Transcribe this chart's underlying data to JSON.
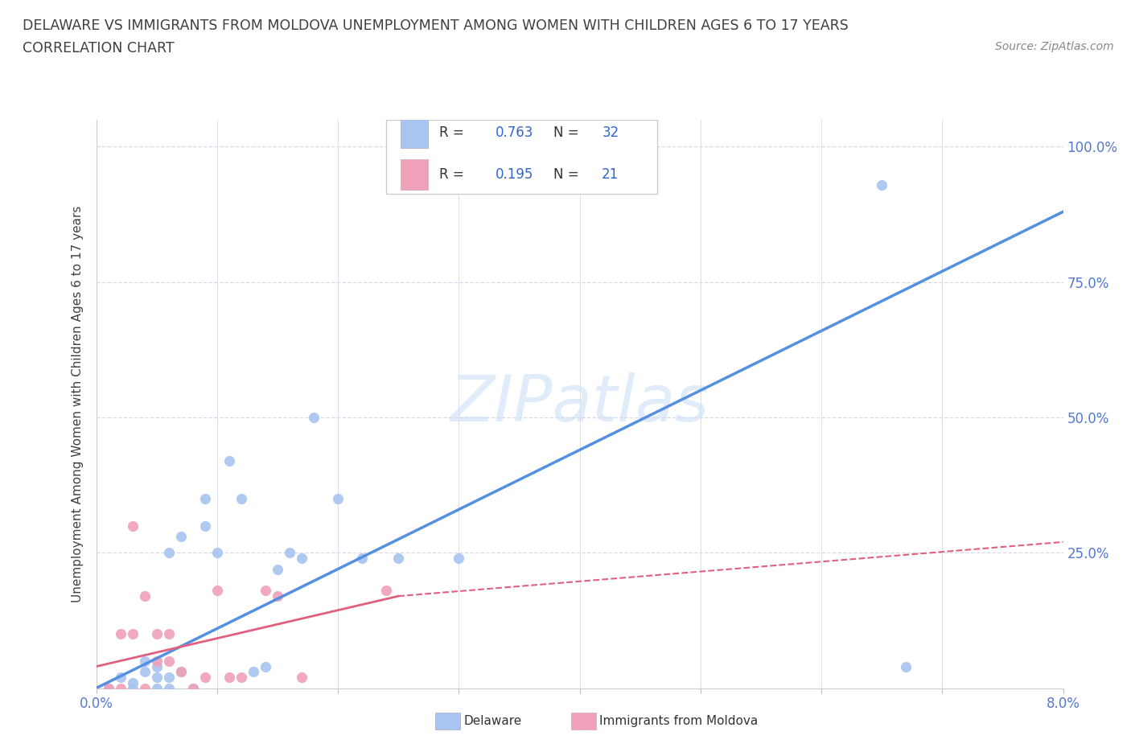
{
  "title_line1": "DELAWARE VS IMMIGRANTS FROM MOLDOVA UNEMPLOYMENT AMONG WOMEN WITH CHILDREN AGES 6 TO 17 YEARS",
  "title_line2": "CORRELATION CHART",
  "source_text": "Source: ZipAtlas.com",
  "ylabel": "Unemployment Among Women with Children Ages 6 to 17 years",
  "xlim": [
    0.0,
    0.08
  ],
  "ylim": [
    0.0,
    1.05
  ],
  "ytick_positions": [
    0.0,
    0.25,
    0.5,
    0.75,
    1.0
  ],
  "ytick_labels": [
    "",
    "25.0%",
    "50.0%",
    "75.0%",
    "100.0%"
  ],
  "delaware_color": "#a8c4f0",
  "moldova_color": "#f0a0b8",
  "delaware_line_color": "#5590e0",
  "moldova_line_color": "#e06080",
  "delaware_R": 0.763,
  "delaware_N": 32,
  "moldova_R": 0.195,
  "moldova_N": 21,
  "delaware_scatter": [
    [
      0.001,
      0.0
    ],
    [
      0.002,
      0.02
    ],
    [
      0.003,
      0.01
    ],
    [
      0.003,
      0.0
    ],
    [
      0.004,
      0.05
    ],
    [
      0.004,
      0.03
    ],
    [
      0.005,
      0.04
    ],
    [
      0.005,
      0.02
    ],
    [
      0.005,
      0.0
    ],
    [
      0.006,
      0.0
    ],
    [
      0.006,
      0.02
    ],
    [
      0.006,
      0.25
    ],
    [
      0.007,
      0.28
    ],
    [
      0.007,
      0.03
    ],
    [
      0.008,
      0.0
    ],
    [
      0.009,
      0.35
    ],
    [
      0.009,
      0.3
    ],
    [
      0.01,
      0.25
    ],
    [
      0.011,
      0.42
    ],
    [
      0.012,
      0.35
    ],
    [
      0.013,
      0.03
    ],
    [
      0.014,
      0.04
    ],
    [
      0.015,
      0.22
    ],
    [
      0.016,
      0.25
    ],
    [
      0.017,
      0.24
    ],
    [
      0.018,
      0.5
    ],
    [
      0.02,
      0.35
    ],
    [
      0.022,
      0.24
    ],
    [
      0.025,
      0.24
    ],
    [
      0.03,
      0.24
    ],
    [
      0.065,
      0.93
    ],
    [
      0.067,
      0.04
    ]
  ],
  "moldova_scatter": [
    [
      0.001,
      0.0
    ],
    [
      0.002,
      0.0
    ],
    [
      0.002,
      0.1
    ],
    [
      0.003,
      0.3
    ],
    [
      0.003,
      0.1
    ],
    [
      0.004,
      0.17
    ],
    [
      0.004,
      0.0
    ],
    [
      0.005,
      0.1
    ],
    [
      0.005,
      0.05
    ],
    [
      0.006,
      0.1
    ],
    [
      0.006,
      0.05
    ],
    [
      0.007,
      0.03
    ],
    [
      0.008,
      0.0
    ],
    [
      0.009,
      0.02
    ],
    [
      0.01,
      0.18
    ],
    [
      0.011,
      0.02
    ],
    [
      0.012,
      0.02
    ],
    [
      0.014,
      0.18
    ],
    [
      0.015,
      0.17
    ],
    [
      0.017,
      0.02
    ],
    [
      0.024,
      0.18
    ]
  ],
  "delaware_trendline": [
    0.0,
    0.0,
    0.08,
    0.88
  ],
  "moldova_trendline_solid": [
    0.0,
    0.04,
    0.025,
    0.17
  ],
  "moldova_trendline_dashed": [
    0.025,
    0.17,
    0.08,
    0.27
  ],
  "watermark_text": "ZIPatlas",
  "background_color": "#ffffff",
  "grid_color": "#d8d8e8",
  "title_color": "#404040",
  "axis_label_color": "#404040",
  "tick_label_color": "#5577cc",
  "legend_value_color": "#3366cc",
  "source_color": "#888888"
}
